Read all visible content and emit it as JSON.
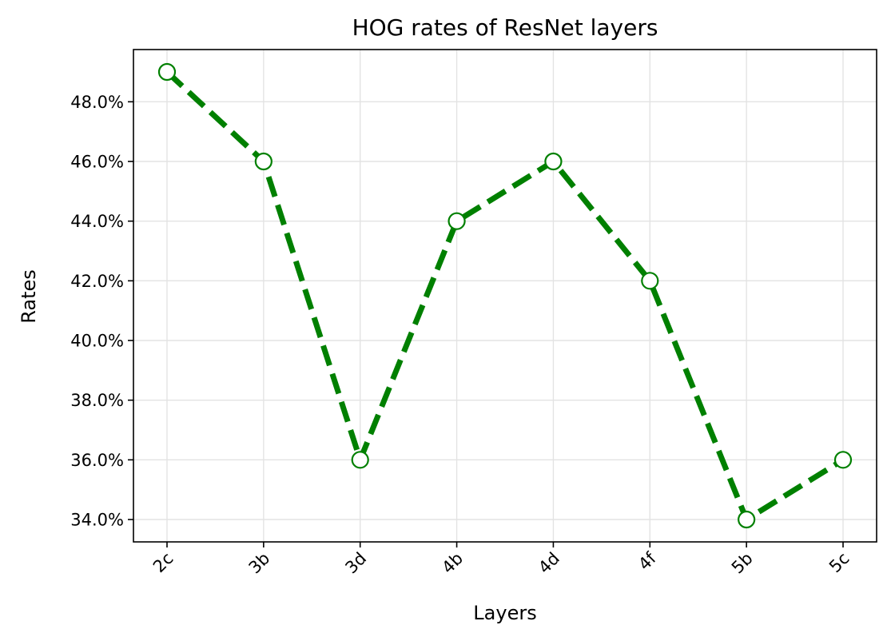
{
  "chart_data": {
    "type": "line",
    "title": "HOG rates of ResNet layers",
    "xlabel": "Layers",
    "ylabel": "Rates",
    "categories": [
      "2c",
      "3b",
      "3d",
      "4b",
      "4d",
      "4f",
      "5b",
      "5c"
    ],
    "series": [
      {
        "values": [
          49.0,
          46.0,
          36.0,
          44.0,
          46.0,
          42.0,
          34.0,
          36.0
        ],
        "color": "#008000",
        "line_style": "dashed",
        "marker": "open-circle"
      }
    ],
    "yticks": [
      34,
      36,
      38,
      40,
      42,
      44,
      46,
      48
    ],
    "ytick_labels": [
      "34.0%",
      "36.0%",
      "38.0%",
      "40.0%",
      "42.0%",
      "44.0%",
      "46.0%",
      "48.0%"
    ],
    "ylim": [
      33.25,
      49.75
    ],
    "grid": true,
    "x_tick_rotation": 45
  }
}
